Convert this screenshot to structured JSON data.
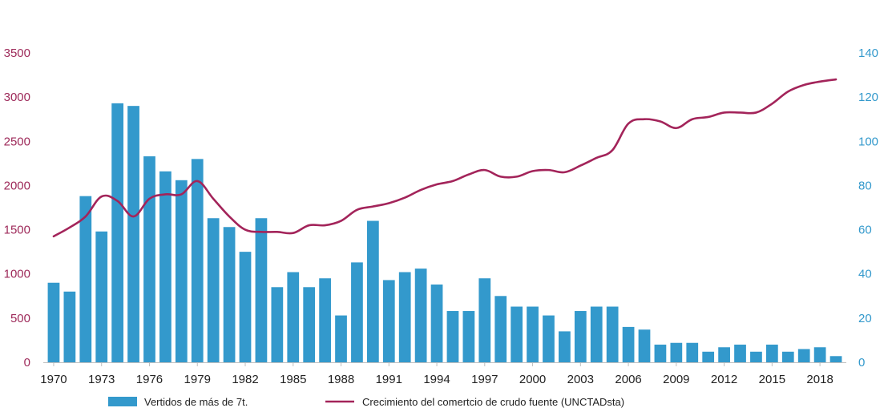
{
  "chart_data": {
    "type": "bar",
    "title": "",
    "xlabel": "",
    "ylabel": "",
    "grid": false,
    "legend_position": "bottom",
    "x": [
      1970,
      1971,
      1972,
      1973,
      1974,
      1975,
      1976,
      1977,
      1978,
      1979,
      1980,
      1981,
      1982,
      1983,
      1984,
      1985,
      1986,
      1987,
      1988,
      1989,
      1990,
      1991,
      1992,
      1993,
      1994,
      1995,
      1996,
      1997,
      1998,
      1999,
      2000,
      2001,
      2002,
      2003,
      2004,
      2005,
      2006,
      2007,
      2008,
      2009,
      2010,
      2011,
      2012,
      2013,
      2014,
      2015,
      2016,
      2017,
      2018,
      2019
    ],
    "x_tick_labels": [
      "1970",
      "1973",
      "1976",
      "1979",
      "1982",
      "1985",
      "1988",
      "1991",
      "1994",
      "1997",
      "2000",
      "2003",
      "2006",
      "2009",
      "2012",
      "2015",
      "2018"
    ],
    "left_axis": {
      "ylim": [
        0,
        3500
      ],
      "ticks": [
        "0",
        "500",
        "1000",
        "1500",
        "2000",
        "2500",
        "3000",
        "3500"
      ]
    },
    "right_axis": {
      "ylim": [
        0,
        140
      ],
      "ticks": [
        "0",
        "20",
        "40",
        "60",
        "80",
        "100",
        "120",
        "140"
      ]
    },
    "series": [
      {
        "name": "Vertidos de más de 7t.",
        "type": "bar",
        "axis": "left",
        "color": "#3399cc",
        "values": [
          900,
          800,
          1880,
          1480,
          2930,
          2900,
          2330,
          2160,
          2060,
          2300,
          1630,
          1530,
          1250,
          1630,
          850,
          1020,
          850,
          950,
          530,
          1130,
          1600,
          930,
          1020,
          1060,
          880,
          580,
          580,
          950,
          750,
          630,
          630,
          530,
          350,
          580,
          630,
          630,
          400,
          370,
          200,
          220,
          220,
          120,
          170,
          200,
          120,
          200,
          120,
          150,
          170,
          70
        ]
      },
      {
        "name": "Crecimiento del comertcio de crudo fuente (UNCTADsta)",
        "type": "line",
        "axis": "right",
        "color": "#a3245a",
        "values": [
          57,
          61,
          66,
          75,
          73,
          66,
          74,
          76,
          76,
          82,
          74,
          66,
          60,
          59,
          59,
          58.5,
          62,
          62,
          64,
          69,
          70.5,
          72,
          74.5,
          78,
          80.5,
          82,
          85,
          87,
          84,
          84,
          86.5,
          87,
          86,
          89,
          92.5,
          96,
          108,
          110,
          109,
          106,
          110,
          111,
          113,
          113,
          113,
          117,
          122.5,
          125.5,
          127,
          128
        ]
      }
    ]
  }
}
